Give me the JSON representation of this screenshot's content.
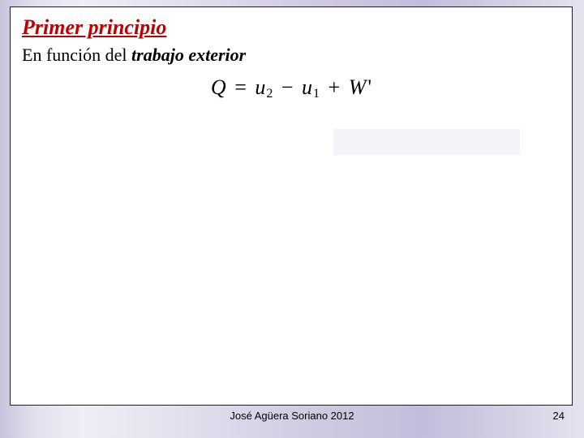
{
  "slide": {
    "heading": "Primer principio",
    "subline_prefix": "En función del ",
    "subline_emph": "trabajo exterior",
    "equation": {
      "Q": "Q",
      "eq": "=",
      "u": "u",
      "sub2": "2",
      "minus": "−",
      "sub1": "1",
      "plus": "+",
      "W": "W",
      "prime": "'"
    },
    "colors": {
      "heading": "#c00000",
      "text": "#000000",
      "box_border": "#1a1a2a",
      "box_bg": "#ffffff",
      "strip_bg": "#f5f3fa"
    }
  },
  "footer": {
    "author": "José Agüera Soriano 2012",
    "page": "24"
  }
}
